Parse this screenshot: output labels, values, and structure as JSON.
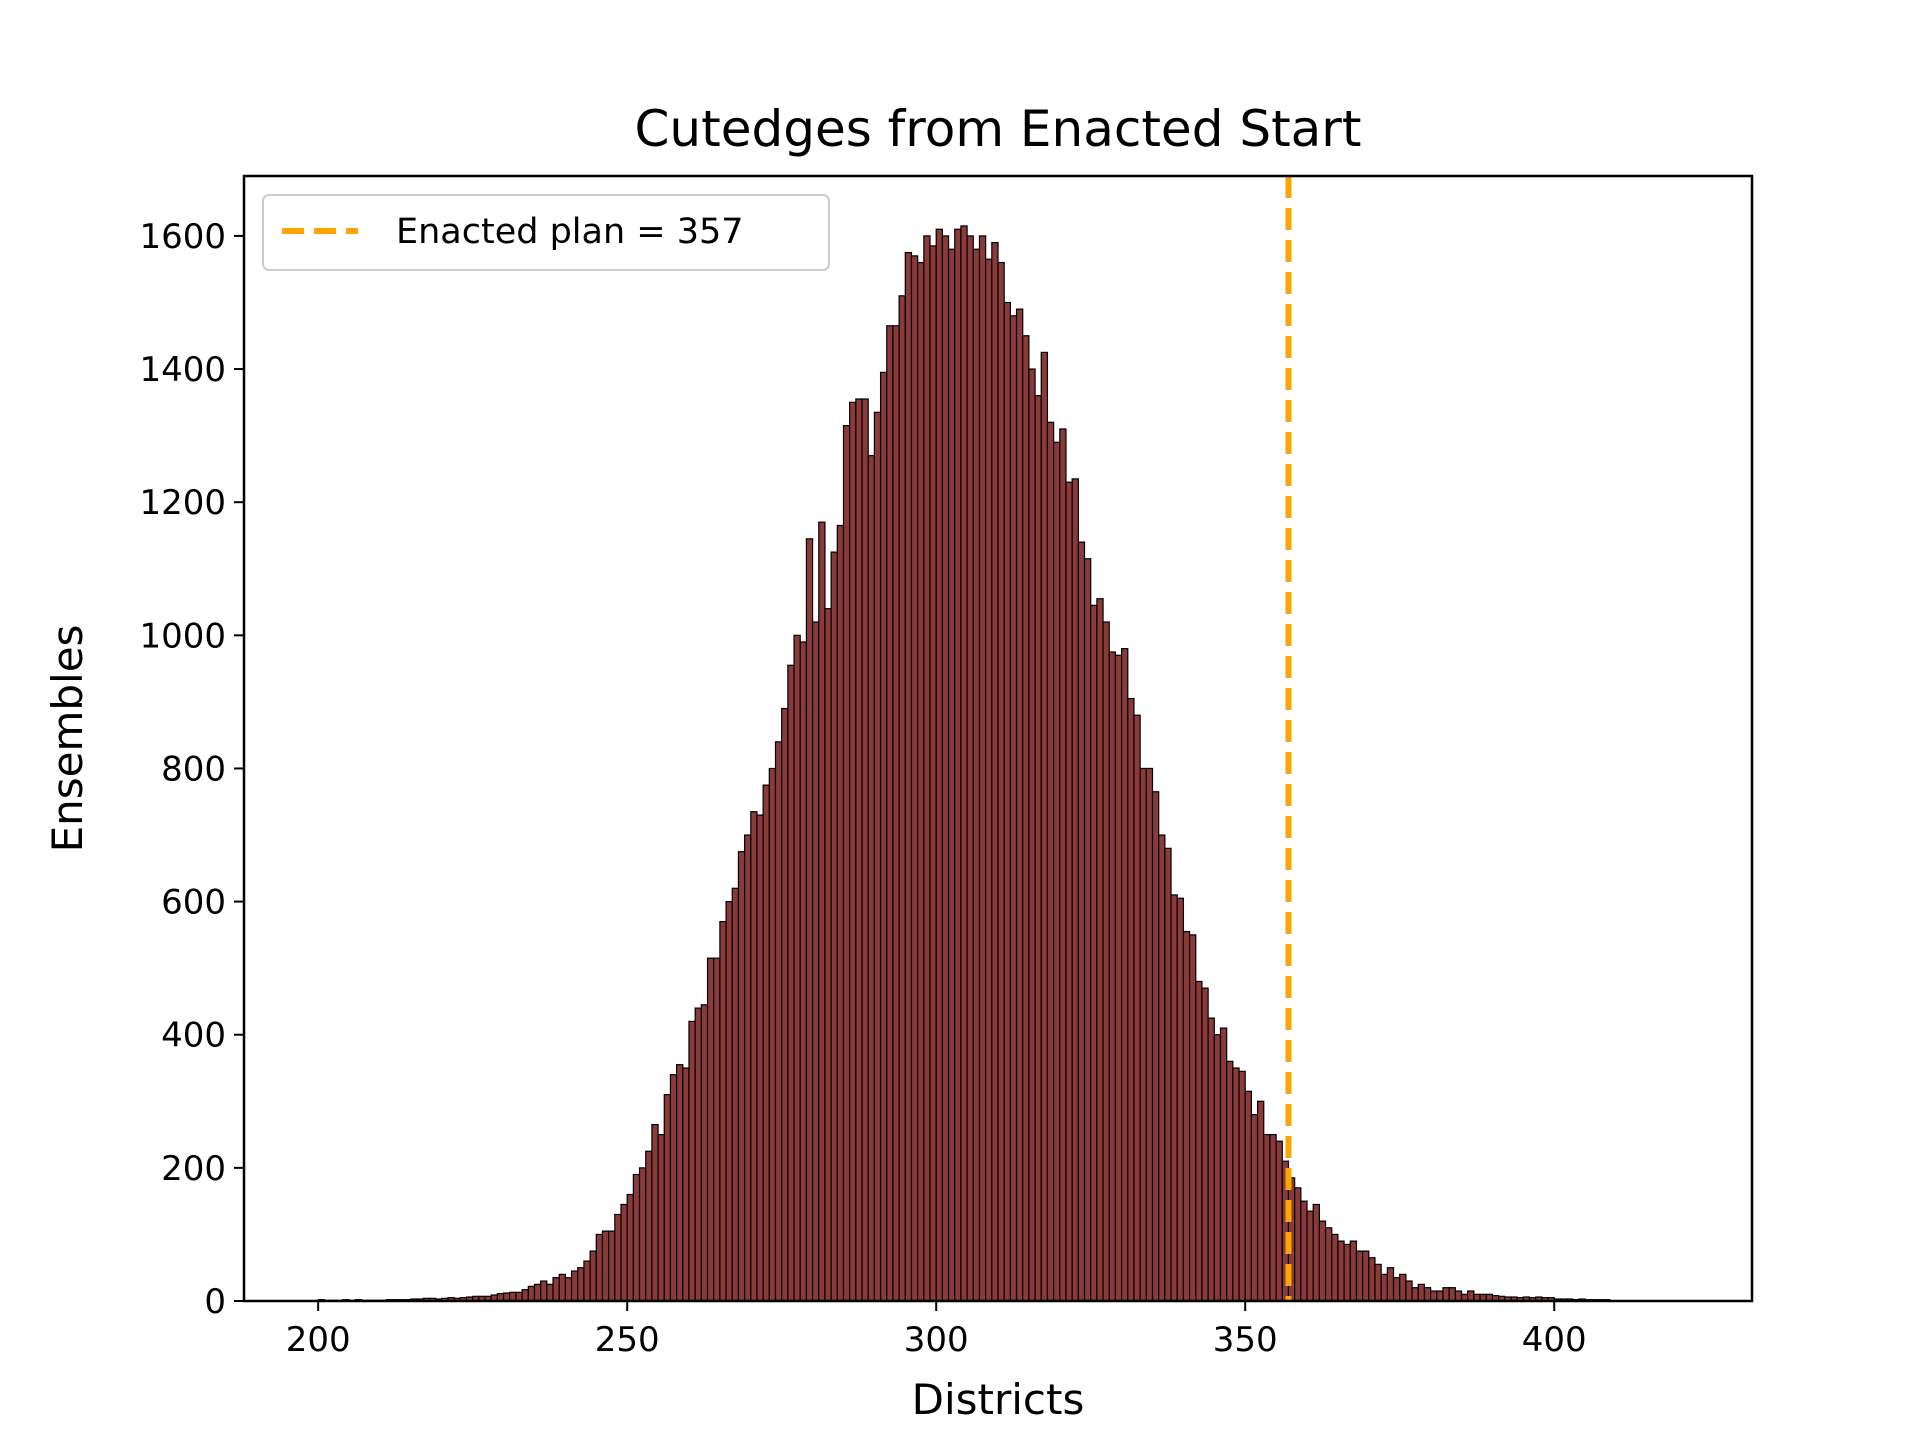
{
  "chart_data": {
    "type": "bar",
    "title": "Cutedges from Enacted Start",
    "xlabel": "Districts",
    "ylabel": "Ensembles",
    "xlim": [
      188,
      432
    ],
    "ylim": [
      0,
      1690
    ],
    "xticks": [
      200,
      250,
      300,
      350,
      400
    ],
    "yticks": [
      0,
      200,
      400,
      600,
      800,
      1000,
      1200,
      1400,
      1600
    ],
    "grid": false,
    "legend": {
      "placement": "top-left"
    },
    "bar_color": "#8b3a3a",
    "bar_edge_color": "#000000",
    "series": [
      {
        "name": "",
        "x_start": 200,
        "bin_width": 1,
        "values": [
          2,
          1,
          1,
          1,
          2,
          1,
          2,
          1,
          1,
          1,
          1,
          2,
          2,
          2,
          2,
          3,
          3,
          4,
          4,
          3,
          4,
          5,
          4,
          5,
          6,
          7,
          7,
          7,
          9,
          11,
          12,
          13,
          13,
          17,
          22,
          25,
          30,
          25,
          35,
          40,
          35,
          45,
          50,
          60,
          75,
          100,
          105,
          105,
          130,
          145,
          160,
          190,
          200,
          225,
          265,
          250,
          310,
          340,
          355,
          350,
          420,
          440,
          445,
          515,
          515,
          570,
          600,
          620,
          675,
          700,
          735,
          730,
          775,
          800,
          840,
          890,
          955,
          1000,
          990,
          1145,
          1020,
          1170,
          1040,
          1125,
          1165,
          1315,
          1350,
          1355,
          1355,
          1270,
          1335,
          1395,
          1465,
          1465,
          1510,
          1575,
          1570,
          1560,
          1600,
          1585,
          1610,
          1600,
          1580,
          1610,
          1615,
          1600,
          1580,
          1600,
          1565,
          1590,
          1560,
          1500,
          1480,
          1490,
          1450,
          1400,
          1360,
          1425,
          1320,
          1290,
          1310,
          1230,
          1235,
          1140,
          1115,
          1045,
          1055,
          1020,
          975,
          970,
          980,
          905,
          880,
          800,
          800,
          765,
          700,
          680,
          610,
          605,
          555,
          550,
          480,
          470,
          425,
          400,
          410,
          360,
          350,
          345,
          315,
          280,
          300,
          250,
          250,
          240,
          210,
          185,
          170,
          150,
          135,
          145,
          120,
          110,
          100,
          90,
          85,
          90,
          75,
          75,
          65,
          55,
          40,
          50,
          35,
          40,
          30,
          20,
          25,
          20,
          15,
          15,
          20,
          20,
          15,
          10,
          15,
          10,
          10,
          10,
          8,
          7,
          6,
          6,
          5,
          6,
          5,
          6,
          5,
          5,
          3,
          3,
          3,
          2,
          3,
          2,
          2,
          2,
          2
        ]
      }
    ],
    "annotations": [
      {
        "type": "vline",
        "x": 357,
        "color": "#ffa500",
        "style": "dashed",
        "label": "Enacted plan = 357"
      }
    ]
  }
}
